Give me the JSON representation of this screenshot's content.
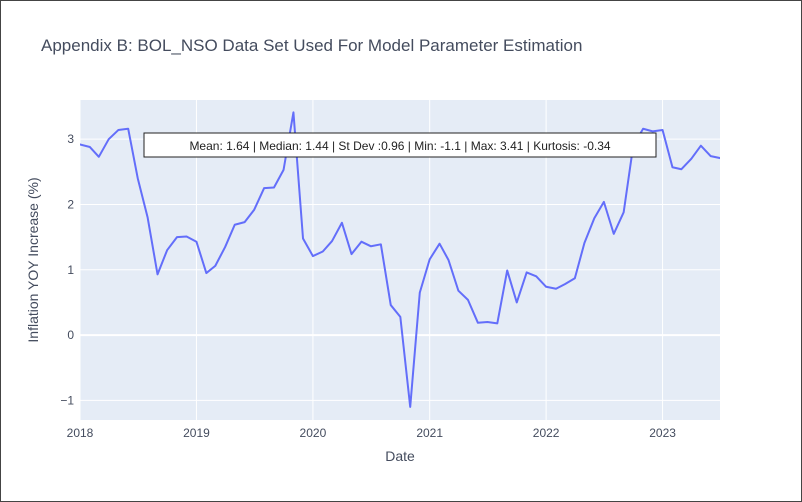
{
  "chart_data": {
    "type": "line",
    "title": "Appendix B: BOL_NSO Data Set Used For Model Parameter Estimation",
    "xlabel": "Date",
    "ylabel": "Inflation YOY Increase (%)",
    "xlim": [
      "2018-01-01",
      "2023-06-30"
    ],
    "ylim": [
      -1.3,
      3.6
    ],
    "x_ticks": [
      {
        "date": "2018-01-01",
        "label": "2018"
      },
      {
        "date": "2019-01-01",
        "label": "2019"
      },
      {
        "date": "2020-01-01",
        "label": "2020"
      },
      {
        "date": "2021-01-01",
        "label": "2021"
      },
      {
        "date": "2022-01-01",
        "label": "2022"
      },
      {
        "date": "2023-01-01",
        "label": "2023"
      }
    ],
    "y_ticks": [
      {
        "value": -1,
        "label": "−1"
      },
      {
        "value": 0,
        "label": "0"
      },
      {
        "value": 1,
        "label": "1"
      },
      {
        "value": 2,
        "label": "2"
      },
      {
        "value": 3,
        "label": "3"
      }
    ],
    "grid": true,
    "legend": "none",
    "annotation": "Mean: 1.64 | Median: 1.44 | St Dev :0.96 | Min: -1.1 | Max: 3.41 | Kurtosis: -0.34",
    "colors": {
      "line": "#636efa",
      "plot_bg": "#e5ecf6",
      "grid": "#ffffff"
    },
    "series": [
      {
        "x": [
          "2018-01-01",
          "2018-02-01",
          "2018-03-01",
          "2018-04-01",
          "2018-05-01",
          "2018-06-01",
          "2018-07-01",
          "2018-08-01",
          "2018-09-01",
          "2018-10-01",
          "2018-11-01",
          "2018-12-01",
          "2019-01-01",
          "2019-02-01",
          "2019-03-01",
          "2019-04-01",
          "2019-05-01",
          "2019-06-01",
          "2019-07-01",
          "2019-08-01",
          "2019-09-01",
          "2019-10-01",
          "2019-11-01",
          "2019-12-01",
          "2020-01-01",
          "2020-02-01",
          "2020-03-01",
          "2020-04-01",
          "2020-05-01",
          "2020-06-01",
          "2020-07-01",
          "2020-08-01",
          "2020-09-01",
          "2020-10-01",
          "2020-11-01",
          "2020-12-01",
          "2021-01-01",
          "2021-02-01",
          "2021-03-01",
          "2021-04-01",
          "2021-05-01",
          "2021-06-01",
          "2021-07-01",
          "2021-08-01",
          "2021-09-01",
          "2021-10-01",
          "2021-11-01",
          "2021-12-01",
          "2022-01-01",
          "2022-02-01",
          "2022-03-01",
          "2022-04-01",
          "2022-05-01",
          "2022-06-01",
          "2022-07-01",
          "2022-08-01",
          "2022-09-01",
          "2022-10-01",
          "2022-11-01",
          "2022-12-01",
          "2023-01-01",
          "2023-02-01",
          "2023-03-01",
          "2023-04-01",
          "2023-05-01",
          "2023-06-01",
          "2023-07-01"
        ],
        "y": [
          2.92,
          2.88,
          2.73,
          3.0,
          3.14,
          3.16,
          2.4,
          1.8,
          0.93,
          1.3,
          1.5,
          1.51,
          1.43,
          0.95,
          1.06,
          1.35,
          1.69,
          1.73,
          1.92,
          2.25,
          2.26,
          2.53,
          3.41,
          1.48,
          1.21,
          1.28,
          1.44,
          1.72,
          1.24,
          1.43,
          1.36,
          1.39,
          0.46,
          0.28,
          -1.1,
          0.65,
          1.16,
          1.4,
          1.15,
          0.68,
          0.54,
          0.19,
          0.2,
          0.18,
          0.99,
          0.5,
          0.96,
          0.9,
          0.74,
          0.71,
          0.78,
          0.87,
          1.41,
          1.79,
          2.04,
          1.55,
          1.88,
          2.9,
          3.16,
          3.12,
          3.14,
          2.57,
          2.54,
          2.7,
          2.9,
          2.74,
          2.71
        ]
      }
    ]
  }
}
